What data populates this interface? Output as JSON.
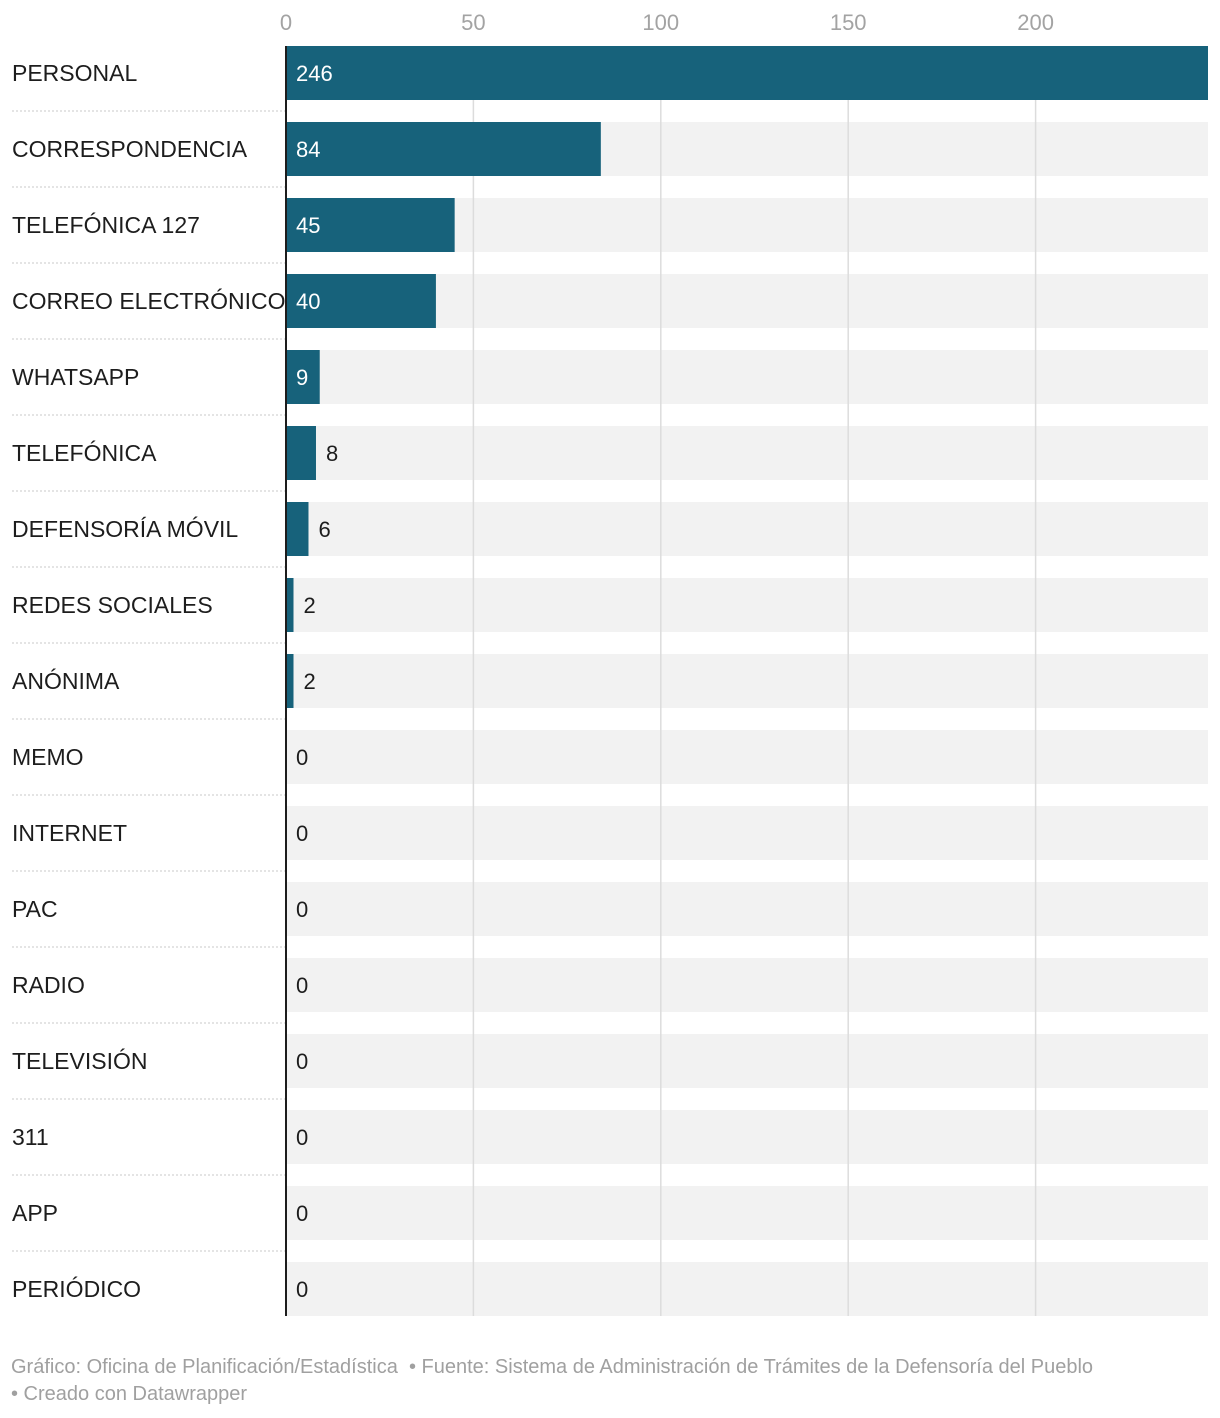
{
  "chart_data": {
    "type": "bar",
    "orientation": "horizontal",
    "categories": [
      "PERSONAL",
      "CORRESPONDENCIA",
      "TELEFÓNICA 127",
      "CORREO ELECTRÓNICO",
      "WHATSAPP",
      "TELEFÓNICA",
      "DEFENSORÍA MÓVIL",
      "REDES SOCIALES",
      "ANÓNIMA",
      "MEMO",
      "INTERNET",
      "PAC",
      "RADIO",
      "TELEVISIÓN",
      "311",
      "APP",
      "PERIÓDICO"
    ],
    "values": [
      246,
      84,
      45,
      40,
      9,
      8,
      6,
      2,
      2,
      0,
      0,
      0,
      0,
      0,
      0,
      0,
      0
    ],
    "xlim": [
      0,
      246
    ],
    "xticks": [
      0,
      50,
      100,
      150,
      200
    ],
    "grid": true,
    "colors": {
      "bar": "#17627b",
      "track": "#f2f2f2",
      "gridline": "#dcdcdc",
      "axis": "#1d1d1d",
      "separator": "#c8c8c8"
    }
  },
  "footer": {
    "grafico": "Gráfico: Oficina de Planificación/Estadística",
    "fuente": "• Fuente: Sistema de Administración de Trámites de la Defensoría del Pueblo",
    "creado": "• Creado con Datawrapper"
  }
}
